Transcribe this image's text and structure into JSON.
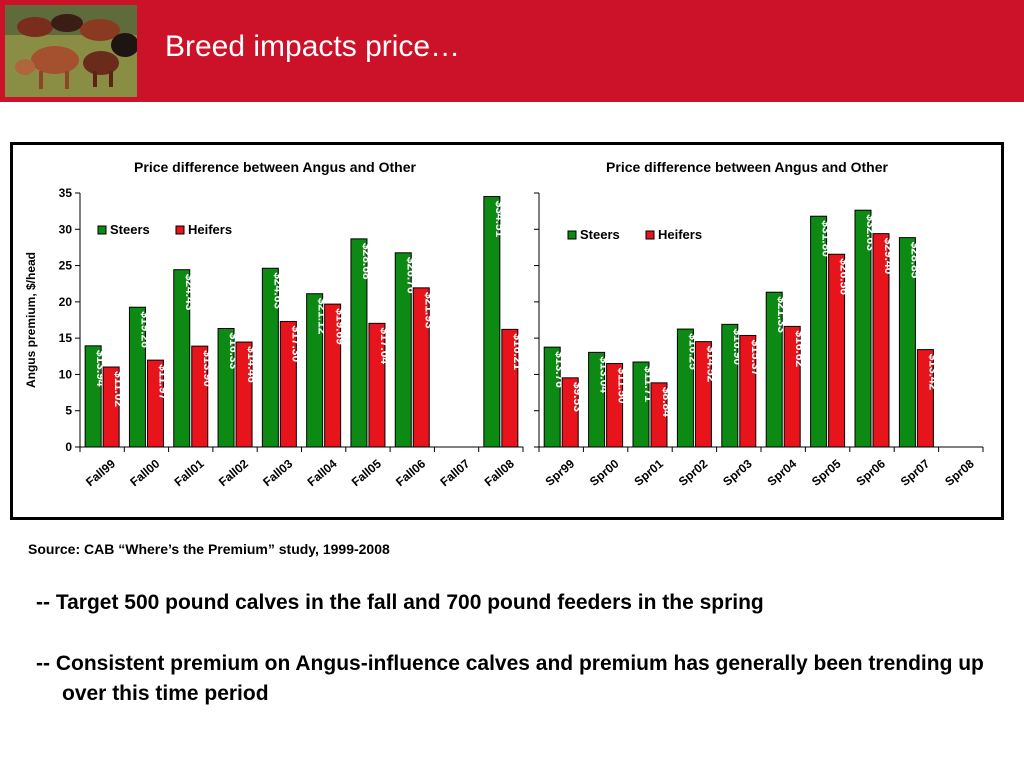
{
  "slide": {
    "title": "Breed impacts price…",
    "source": "Source: CAB “Where’s the Premium” study, 1999-2008",
    "bullets": [
      "-- Target 500 pound calves in the fall and 700 pound feeders in the spring",
      "-- Consistent premium on Angus-influence calves and premium has generally been trending up over this time period"
    ]
  },
  "colors": {
    "banner": "#cc1229",
    "steers": "#0d8a14",
    "heifers": "#e8141b"
  },
  "chart_data": [
    {
      "type": "bar",
      "title": "Price difference between Angus and Other",
      "ylabel": "Angus premium, $/head",
      "ylim": [
        0,
        35
      ],
      "yticks": [
        0,
        5,
        10,
        15,
        20,
        25,
        30,
        35
      ],
      "legend": "top-left",
      "categories": [
        "Fall99",
        "Fall00",
        "Fall01",
        "Fall02",
        "Fall03",
        "Fall04",
        "Fall05",
        "Fall06",
        "Fall07",
        "Fall08"
      ],
      "series": [
        {
          "name": "Steers",
          "values": [
            13.94,
            19.26,
            24.43,
            16.33,
            24.63,
            21.12,
            28.68,
            26.76,
            null,
            34.51
          ],
          "labels": [
            "$13.94",
            "$19.26",
            "$24.43",
            "$16.33",
            "$24.63",
            "$21.12",
            "$28.68",
            "$26.76",
            "",
            "$34.51"
          ]
        },
        {
          "name": "Heifers",
          "values": [
            11.02,
            11.97,
            13.9,
            14.46,
            17.3,
            19.69,
            17.04,
            21.93,
            null,
            16.21
          ],
          "labels": [
            "$11.02",
            "$11.97",
            "$13.90",
            "$14.46",
            "$17.30",
            "$19.69",
            "$17.04",
            "$21.93",
            "",
            "$16.21"
          ]
        }
      ]
    },
    {
      "type": "bar",
      "title": "Price difference between Angus and Other",
      "ylabel": "",
      "ylim": [
        0,
        35
      ],
      "yticks": [
        0,
        5,
        10,
        15,
        20,
        25,
        30,
        35
      ],
      "legend": "top-left",
      "categories": [
        "Spr99",
        "Spr00",
        "Spr01",
        "Spr02",
        "Spr03",
        "Spr04",
        "Spr05",
        "Spr06",
        "Spr07",
        "Spr08"
      ],
      "series": [
        {
          "name": "Steers",
          "values": [
            13.76,
            13.04,
            11.71,
            16.25,
            16.9,
            21.33,
            31.8,
            32.63,
            28.85,
            null
          ],
          "labels": [
            "$13.76",
            "$13.04",
            "$11.71",
            "$16.25",
            "$16.90",
            "$21.33",
            "$31.80",
            "$32.63",
            "$28.85",
            ""
          ]
        },
        {
          "name": "Heifers",
          "values": [
            9.53,
            11.5,
            8.84,
            14.52,
            15.37,
            16.62,
            26.56,
            29.4,
            13.42,
            null
          ],
          "labels": [
            "$9.53",
            "$11.50",
            "$8.84",
            "$14.52",
            "$15.37",
            "$16.62",
            "$26.56",
            "$29.40",
            "$13.42",
            ""
          ]
        }
      ]
    }
  ]
}
